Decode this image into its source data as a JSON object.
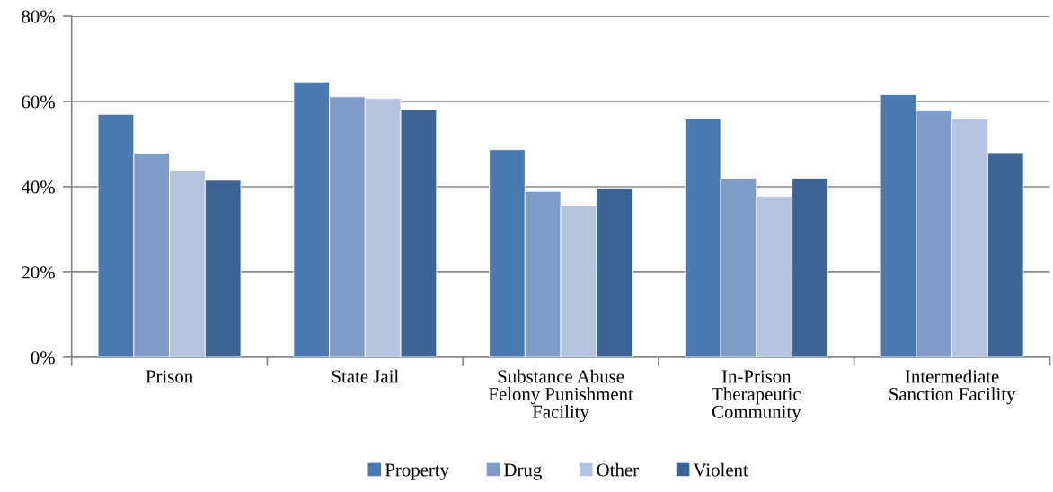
{
  "chart_data": {
    "type": "bar",
    "categories": [
      "Prison",
      "State Jail",
      "Substance Abuse\nFelony Punishment\nFacility",
      "In-Prison\nTherapeutic\nCommunity",
      "Intermediate\nSanction Facility"
    ],
    "series": [
      {
        "name": "Property",
        "color": "#4a78b0",
        "values": [
          57.0,
          64.6,
          48.7,
          55.9,
          61.6
        ]
      },
      {
        "name": "Drug",
        "color": "#7f9cc8",
        "values": [
          47.9,
          61.1,
          38.9,
          42.0,
          57.8
        ]
      },
      {
        "name": "Other",
        "color": "#b4c3de",
        "values": [
          43.8,
          60.7,
          35.5,
          37.8,
          55.9
        ]
      },
      {
        "name": "Violent",
        "color": "#3c6596",
        "values": [
          41.5,
          58.1,
          39.7,
          42.0,
          48.0
        ]
      }
    ],
    "ylim": [
      0,
      80
    ],
    "yticks": [
      {
        "value": 0,
        "label": "0%"
      },
      {
        "value": 20,
        "label": "20%"
      },
      {
        "value": 40,
        "label": "40%"
      },
      {
        "value": 60,
        "label": "60%"
      },
      {
        "value": 80,
        "label": "80%"
      }
    ],
    "grid": "y",
    "legend": "bottom"
  }
}
